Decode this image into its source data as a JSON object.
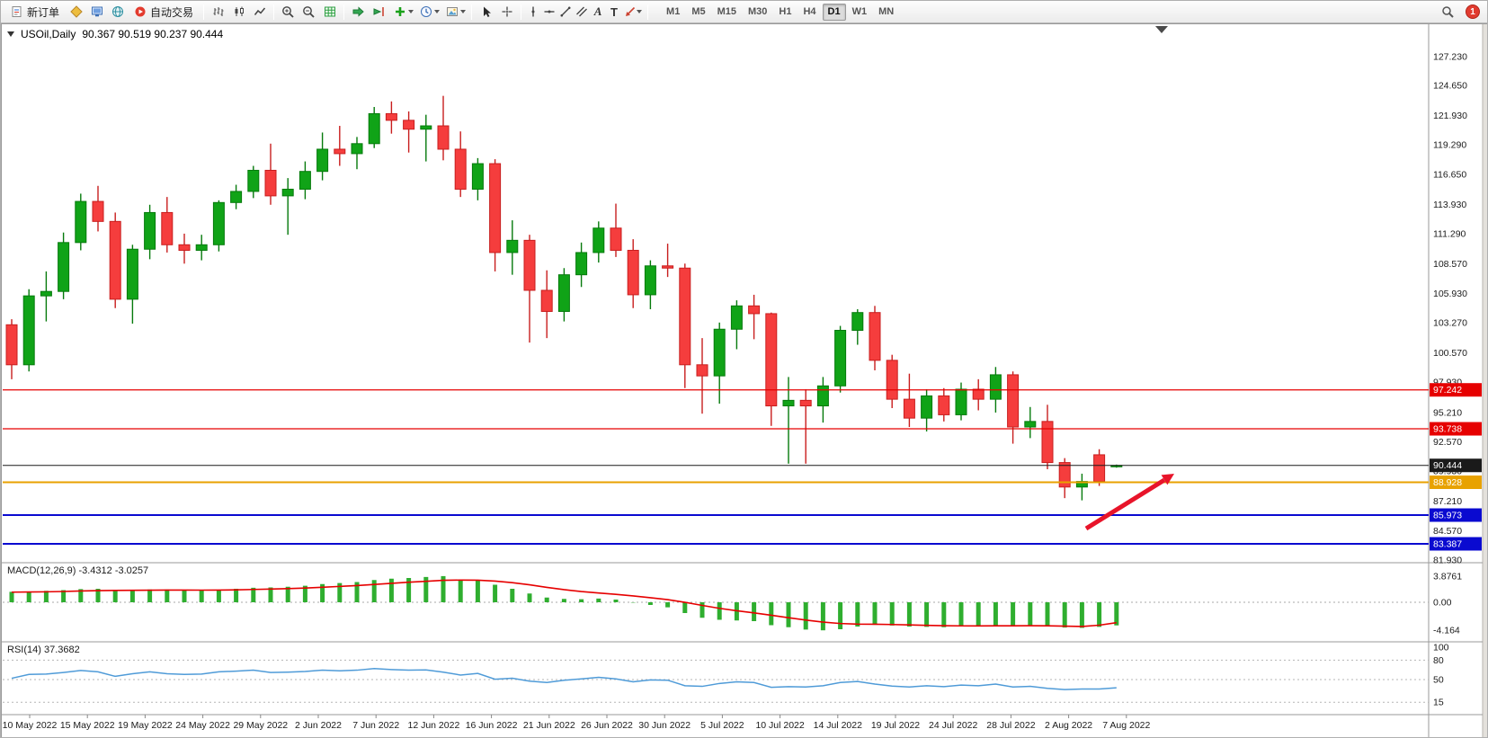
{
  "toolbar": {
    "new_order": "新订单",
    "auto_trading": "自动交易",
    "timeframes": [
      "M1",
      "M5",
      "M15",
      "M30",
      "H1",
      "H4",
      "D1",
      "W1",
      "MN"
    ],
    "active_timeframe": "D1",
    "tool_labels": {
      "text_a": "A",
      "text_t": "T"
    },
    "badge_count": "1"
  },
  "chart": {
    "symbol_title": "USOil,Daily",
    "ohlc": "90.367 90.519 90.237 90.444",
    "macd_label": "MACD(12,26,9) -3.4312 -3.0257",
    "rsi_label": "RSI(14) 37.3682"
  },
  "chart_data": {
    "type": "candlestick",
    "symbol": "USOil",
    "timeframe": "Daily",
    "current_ohlc": {
      "open": "90.367",
      "high": "90.519",
      "low": "90.237",
      "close": "90.444"
    },
    "price_axis_range": [
      127.23,
      81.93
    ],
    "price_axis": [
      "127.230",
      "124.650",
      "121.930",
      "119.290",
      "116.650",
      "113.930",
      "111.290",
      "108.570",
      "105.930",
      "103.270",
      "100.570",
      "97.930",
      "95.210",
      "92.570",
      "89.930",
      "87.210",
      "84.570",
      "81.930"
    ],
    "date_axis": [
      "10 May 2022",
      "15 May 2022",
      "19 May 2022",
      "24 May 2022",
      "29 May 2022",
      "2 Jun 2022",
      "7 Jun 2022",
      "12 Jun 2022",
      "16 Jun 2022",
      "21 Jun 2022",
      "26 Jun 2022",
      "30 Jun 2022",
      "5 Jul 2022",
      "10 Jul 2022",
      "14 Jul 2022",
      "19 Jul 2022",
      "24 Jul 2022",
      "28 Jul 2022",
      "2 Aug 2022",
      "7 Aug 2022"
    ],
    "candles": [
      [
        103.1,
        103.6,
        98.2,
        99.5
      ],
      [
        99.5,
        106.3,
        98.9,
        105.7
      ],
      [
        105.7,
        107.9,
        103.4,
        106.1
      ],
      [
        106.1,
        111.4,
        105.4,
        110.5
      ],
      [
        110.5,
        114.9,
        109.8,
        114.2
      ],
      [
        114.2,
        115.6,
        111.5,
        112.4
      ],
      [
        112.4,
        113.2,
        104.6,
        105.4
      ],
      [
        105.4,
        110.3,
        103.2,
        109.9
      ],
      [
        109.9,
        113.9,
        109.0,
        113.2
      ],
      [
        113.2,
        114.6,
        109.6,
        110.3
      ],
      [
        110.3,
        111.3,
        108.6,
        109.8
      ],
      [
        109.8,
        111.2,
        108.9,
        110.3
      ],
      [
        110.3,
        114.3,
        109.7,
        114.1
      ],
      [
        114.1,
        115.7,
        113.5,
        115.1
      ],
      [
        115.1,
        117.4,
        114.5,
        117.0
      ],
      [
        117.0,
        119.4,
        113.9,
        114.7
      ],
      [
        114.7,
        116.3,
        111.2,
        115.3
      ],
      [
        115.3,
        117.8,
        114.4,
        116.9
      ],
      [
        116.9,
        120.4,
        116.1,
        118.9
      ],
      [
        118.9,
        121.0,
        117.4,
        118.5
      ],
      [
        118.5,
        120.0,
        117.1,
        119.4
      ],
      [
        119.4,
        122.7,
        119.0,
        122.1
      ],
      [
        122.1,
        123.2,
        120.3,
        121.5
      ],
      [
        121.5,
        122.3,
        118.6,
        120.7
      ],
      [
        120.7,
        122.0,
        117.8,
        121.0
      ],
      [
        121.0,
        123.7,
        117.9,
        118.9
      ],
      [
        118.9,
        120.5,
        114.6,
        115.3
      ],
      [
        115.3,
        118.1,
        114.3,
        117.6
      ],
      [
        117.6,
        118.0,
        107.9,
        109.6
      ],
      [
        109.6,
        112.5,
        107.6,
        110.7
      ],
      [
        110.7,
        111.2,
        101.5,
        106.2
      ],
      [
        106.2,
        108.0,
        101.9,
        104.3
      ],
      [
        104.3,
        108.2,
        103.4,
        107.6
      ],
      [
        107.6,
        110.5,
        106.5,
        109.6
      ],
      [
        109.6,
        112.4,
        108.7,
        111.8
      ],
      [
        111.8,
        114.0,
        109.2,
        109.8
      ],
      [
        109.8,
        110.8,
        104.6,
        105.8
      ],
      [
        105.8,
        108.9,
        104.5,
        108.4
      ],
      [
        108.4,
        110.4,
        107.4,
        108.2
      ],
      [
        108.2,
        108.6,
        97.4,
        99.5
      ],
      [
        99.5,
        101.9,
        95.1,
        98.5
      ],
      [
        98.5,
        103.3,
        96.0,
        102.7
      ],
      [
        102.7,
        105.3,
        100.9,
        104.8
      ],
      [
        104.8,
        105.8,
        101.8,
        104.1
      ],
      [
        104.1,
        104.2,
        94.0,
        95.8
      ],
      [
        95.8,
        98.4,
        90.6,
        96.3
      ],
      [
        96.3,
        97.3,
        90.6,
        95.8
      ],
      [
        95.8,
        98.4,
        94.3,
        97.6
      ],
      [
        97.6,
        103.0,
        97.0,
        102.6
      ],
      [
        102.6,
        104.5,
        101.3,
        104.2
      ],
      [
        104.2,
        104.8,
        99.0,
        99.9
      ],
      [
        99.9,
        100.4,
        95.6,
        96.4
      ],
      [
        96.4,
        98.7,
        93.9,
        94.7
      ],
      [
        94.7,
        97.3,
        93.5,
        96.7
      ],
      [
        96.7,
        97.4,
        94.4,
        95.0
      ],
      [
        95.0,
        97.9,
        94.5,
        97.3
      ],
      [
        97.3,
        98.2,
        95.4,
        96.4
      ],
      [
        96.4,
        99.3,
        95.2,
        98.6
      ],
      [
        98.6,
        98.9,
        92.4,
        93.9
      ],
      [
        93.9,
        95.7,
        92.9,
        94.4
      ],
      [
        94.4,
        95.9,
        90.1,
        90.7
      ],
      [
        90.7,
        91.1,
        87.5,
        88.5
      ],
      [
        88.5,
        89.7,
        87.3,
        89.0
      ],
      [
        91.4,
        91.9,
        88.6,
        89.0
      ],
      [
        90.37,
        90.52,
        90.24,
        90.44
      ]
    ],
    "hlines": [
      {
        "price": 97.242,
        "label": "97.242",
        "color": "#e60000",
        "width": 1.2
      },
      {
        "price": 93.738,
        "label": "93.738",
        "color": "#e60000",
        "width": 1.2
      },
      {
        "price": 88.928,
        "label": "88.928",
        "color": "#e8a200",
        "width": 2
      },
      {
        "price": 85.973,
        "label": "85.973",
        "color": "#0a0ad0",
        "width": 2
      },
      {
        "price": 83.387,
        "label": "83.387",
        "color": "#0a0ad0",
        "width": 2
      },
      {
        "price": 90.444,
        "label": "90.444",
        "color": "#1a1a1a",
        "width": 1
      }
    ],
    "macd": {
      "label": "MACD(12,26,9)",
      "values_text": "-3.4312 -3.0257",
      "axis": [
        "3.8761",
        "0.00",
        "-4.164"
      ],
      "histogram": [
        1.55,
        1.6,
        1.7,
        1.8,
        1.95,
        2.0,
        1.85,
        1.8,
        1.9,
        1.9,
        1.8,
        1.75,
        1.85,
        2.0,
        2.15,
        2.2,
        2.3,
        2.45,
        2.7,
        2.85,
        3.0,
        3.3,
        3.5,
        3.6,
        3.75,
        3.88,
        3.4,
        3.2,
        2.6,
        2.0,
        1.3,
        0.7,
        0.5,
        0.45,
        0.55,
        0.4,
        -0.05,
        -0.4,
        -0.75,
        -1.6,
        -2.3,
        -2.6,
        -2.7,
        -2.8,
        -3.4,
        -3.7,
        -4.05,
        -4.16,
        -4.0,
        -3.6,
        -3.35,
        -3.45,
        -3.6,
        -3.65,
        -3.7,
        -3.6,
        -3.55,
        -3.4,
        -3.5,
        -3.45,
        -3.55,
        -3.75,
        -3.8,
        -3.65,
        -3.43
      ],
      "signal": [
        1.5,
        1.52,
        1.55,
        1.6,
        1.67,
        1.73,
        1.76,
        1.77,
        1.79,
        1.81,
        1.81,
        1.8,
        1.81,
        1.84,
        1.9,
        1.96,
        2.03,
        2.11,
        2.23,
        2.35,
        2.48,
        2.64,
        2.81,
        2.97,
        3.11,
        3.26,
        3.29,
        3.27,
        3.14,
        2.91,
        2.59,
        2.21,
        1.87,
        1.59,
        1.38,
        1.18,
        0.94,
        0.67,
        0.39,
        -0.01,
        -0.47,
        -0.9,
        -1.26,
        -1.57,
        -1.93,
        -2.29,
        -2.64,
        -2.94,
        -3.15,
        -3.24,
        -3.26,
        -3.3,
        -3.36,
        -3.42,
        -3.48,
        -3.5,
        -3.51,
        -3.49,
        -3.49,
        -3.48,
        -3.49,
        -3.54,
        -3.59,
        -3.4,
        -3.03
      ]
    },
    "rsi": {
      "label": "RSI(14)",
      "value_text": "37.3682",
      "axis": [
        "100",
        "80",
        "50",
        "15"
      ],
      "levels": [
        80,
        50,
        15
      ],
      "values": [
        52,
        58,
        58.5,
        61,
        64,
        62,
        55,
        59,
        62,
        59,
        58,
        58.5,
        62,
        63,
        64.5,
        61,
        61.5,
        62.5,
        64.5,
        63.5,
        64.5,
        67,
        65.5,
        64.5,
        65,
        61.5,
        57,
        59.5,
        50.5,
        52,
        47.5,
        45.5,
        49,
        51,
        53.5,
        51,
        46.5,
        49.5,
        49,
        40.5,
        39.5,
        44,
        46.5,
        45.5,
        38,
        39,
        38.5,
        40.5,
        45.5,
        47,
        43,
        40,
        38.5,
        40.5,
        39,
        41.5,
        40.5,
        43,
        38.5,
        39.5,
        36.5,
        34.5,
        35.5,
        35.5,
        37.37
      ]
    },
    "annotation_arrow": {
      "from": [
        1207,
        562
      ],
      "to": [
        1305,
        501
      ],
      "color": "#e8142a"
    },
    "colors": {
      "bull": "#10a317",
      "bull_border": "#067a0c",
      "bear": "#f53d3d",
      "bear_border": "#c81e1e",
      "macd_hist": "#2fae2f",
      "macd_signal": "#e60000",
      "rsi_line": "#4f9bd8",
      "arrow": "#e8142a"
    }
  }
}
